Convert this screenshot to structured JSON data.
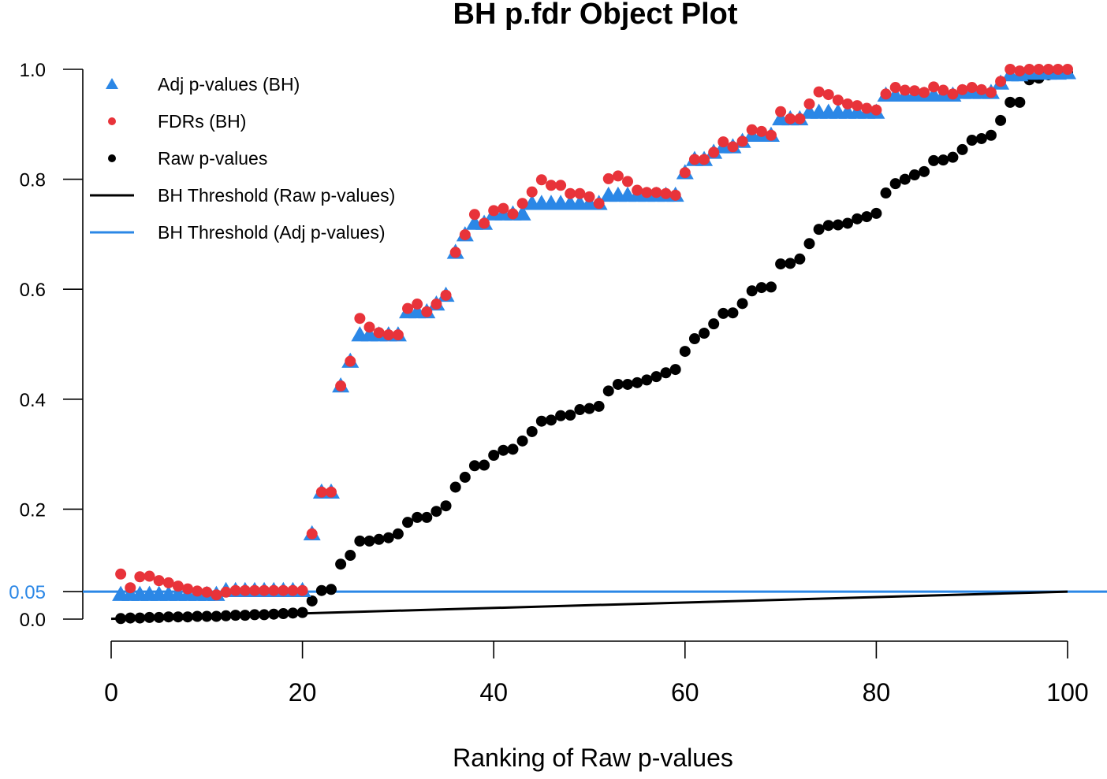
{
  "chart_data": {
    "type": "scatter",
    "title": "BH p.fdr Object Plot",
    "xlabel": "Ranking of Raw p-values",
    "ylabel": "",
    "xlim": [
      0,
      100
    ],
    "ylim": [
      0,
      1.0
    ],
    "x_ticks": [
      0,
      20,
      40,
      60,
      80,
      100
    ],
    "y_ticks": [
      0.0,
      0.2,
      0.4,
      0.6,
      0.8,
      1.0
    ],
    "y_tick_labels": [
      "0.0",
      "0.2",
      "0.4",
      "0.6",
      "0.8",
      "1.0"
    ],
    "extra_y_tick": {
      "value": 0.05,
      "label": "0.05",
      "color": "#2b87e6"
    },
    "grid": false,
    "legend_position": "top-left",
    "legend": [
      {
        "label": "Adj p-values (BH)",
        "marker": "triangle",
        "color": "#2b87e6"
      },
      {
        "label": "FDRs (BH)",
        "marker": "circle",
        "color": "#e8333a"
      },
      {
        "label": "Raw p-values",
        "marker": "circle",
        "color": "#000000"
      },
      {
        "label": "BH Threshold (Raw p-values)",
        "marker": "line",
        "color": "#000000"
      },
      {
        "label": "BH Threshold (Adj p-values)",
        "marker": "line",
        "color": "#2b87e6"
      }
    ],
    "x": [
      1,
      2,
      3,
      4,
      5,
      6,
      7,
      8,
      9,
      10,
      11,
      12,
      13,
      14,
      15,
      16,
      17,
      18,
      19,
      20,
      21,
      22,
      23,
      24,
      25,
      26,
      27,
      28,
      29,
      30,
      31,
      32,
      33,
      34,
      35,
      36,
      37,
      38,
      39,
      40,
      41,
      42,
      43,
      44,
      45,
      46,
      47,
      48,
      49,
      50,
      51,
      52,
      53,
      54,
      55,
      56,
      57,
      58,
      59,
      60,
      61,
      62,
      63,
      64,
      65,
      66,
      67,
      68,
      69,
      70,
      71,
      72,
      73,
      74,
      75,
      76,
      77,
      78,
      79,
      80,
      81,
      82,
      83,
      84,
      85,
      86,
      87,
      88,
      89,
      90,
      91,
      92,
      93,
      94,
      95,
      96,
      97,
      98,
      99,
      100
    ],
    "series": [
      {
        "name": "Raw p-values",
        "color": "#000000",
        "marker": "circle",
        "values": [
          0.001,
          0.002,
          0.002,
          0.003,
          0.003,
          0.004,
          0.004,
          0.004,
          0.005,
          0.005,
          0.005,
          0.006,
          0.007,
          0.007,
          0.008,
          0.008,
          0.009,
          0.01,
          0.011,
          0.012,
          0.033,
          0.052,
          0.054,
          0.1,
          0.116,
          0.142,
          0.142,
          0.145,
          0.148,
          0.155,
          0.176,
          0.185,
          0.185,
          0.196,
          0.206,
          0.24,
          0.258,
          0.279,
          0.28,
          0.298,
          0.307,
          0.309,
          0.324,
          0.341,
          0.36,
          0.362,
          0.37,
          0.371,
          0.381,
          0.383,
          0.387,
          0.415,
          0.427,
          0.427,
          0.43,
          0.435,
          0.441,
          0.448,
          0.454,
          0.487,
          0.51,
          0.52,
          0.537,
          0.556,
          0.557,
          0.574,
          0.597,
          0.603,
          0.604,
          0.646,
          0.647,
          0.655,
          0.683,
          0.709,
          0.716,
          0.717,
          0.72,
          0.728,
          0.732,
          0.738,
          0.775,
          0.792,
          0.8,
          0.808,
          0.814,
          0.834,
          0.835,
          0.84,
          0.854,
          0.871,
          0.874,
          0.88,
          0.907,
          0.94,
          0.94,
          0.981,
          0.984,
          0.99,
          0.993,
          0.994
        ]
      },
      {
        "name": "Adj p-values (BH)",
        "color": "#2b87e6",
        "marker": "triangle",
        "values": [
          0.045,
          0.045,
          0.045,
          0.045,
          0.045,
          0.045,
          0.045,
          0.045,
          0.045,
          0.045,
          0.045,
          0.052,
          0.052,
          0.052,
          0.052,
          0.052,
          0.052,
          0.052,
          0.052,
          0.052,
          0.155,
          0.231,
          0.231,
          0.424,
          0.469,
          0.517,
          0.517,
          0.517,
          0.517,
          0.517,
          0.559,
          0.559,
          0.559,
          0.573,
          0.589,
          0.667,
          0.699,
          0.72,
          0.72,
          0.737,
          0.737,
          0.737,
          0.737,
          0.756,
          0.756,
          0.756,
          0.756,
          0.756,
          0.756,
          0.756,
          0.756,
          0.771,
          0.771,
          0.771,
          0.771,
          0.771,
          0.771,
          0.771,
          0.771,
          0.812,
          0.836,
          0.836,
          0.849,
          0.859,
          0.859,
          0.869,
          0.88,
          0.88,
          0.88,
          0.91,
          0.91,
          0.91,
          0.922,
          0.922,
          0.922,
          0.922,
          0.922,
          0.922,
          0.922,
          0.922,
          0.953,
          0.953,
          0.953,
          0.953,
          0.953,
          0.953,
          0.953,
          0.953,
          0.958,
          0.958,
          0.958,
          0.958,
          0.975,
          0.99,
          0.99,
          0.993,
          0.993,
          0.993,
          0.993,
          0.994
        ]
      },
      {
        "name": "FDRs (BH)",
        "color": "#e8333a",
        "marker": "circle",
        "values": [
          0.082,
          0.057,
          0.077,
          0.078,
          0.07,
          0.066,
          0.06,
          0.055,
          0.051,
          0.049,
          0.044,
          0.049,
          0.052,
          0.052,
          0.052,
          0.052,
          0.052,
          0.052,
          0.052,
          0.052,
          0.155,
          0.231,
          0.231,
          0.424,
          0.469,
          0.547,
          0.531,
          0.521,
          0.517,
          0.517,
          0.565,
          0.573,
          0.559,
          0.573,
          0.589,
          0.667,
          0.699,
          0.736,
          0.72,
          0.743,
          0.747,
          0.737,
          0.756,
          0.777,
          0.799,
          0.789,
          0.789,
          0.774,
          0.774,
          0.768,
          0.756,
          0.801,
          0.806,
          0.796,
          0.78,
          0.776,
          0.776,
          0.774,
          0.771,
          0.812,
          0.836,
          0.836,
          0.849,
          0.868,
          0.859,
          0.869,
          0.89,
          0.887,
          0.88,
          0.923,
          0.91,
          0.91,
          0.937,
          0.959,
          0.954,
          0.944,
          0.937,
          0.934,
          0.929,
          0.926,
          0.955,
          0.967,
          0.962,
          0.961,
          0.958,
          0.968,
          0.962,
          0.955,
          0.963,
          0.967,
          0.963,
          0.958,
          0.978,
          1.0,
          0.997,
          1.0,
          1.0,
          1.0,
          1.0,
          1.0
        ]
      }
    ],
    "lines": [
      {
        "name": "BH Threshold (Raw p-values)",
        "color": "#000000",
        "x": [
          0,
          100
        ],
        "y": [
          0.0005,
          0.05
        ]
      },
      {
        "name": "BH Threshold (Adj p-values)",
        "color": "#2b87e6",
        "y": 0.05,
        "horizontal": true
      }
    ]
  }
}
